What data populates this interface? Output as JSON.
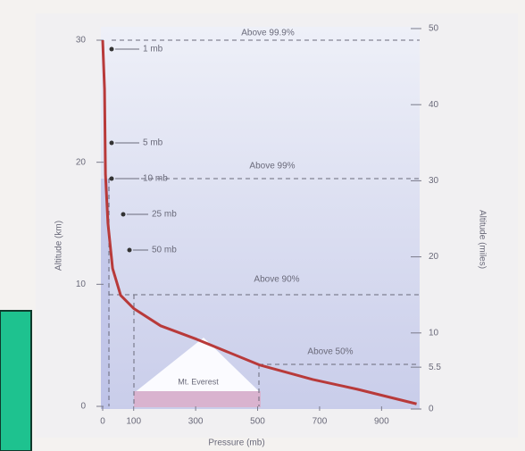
{
  "chart_data": {
    "type": "line",
    "x_label": "Pressure (mb)",
    "y_label": "Altitude (km)",
    "y2_label": "Altitude (miles)",
    "xlim": [
      0,
      1020
    ],
    "xticks": [
      0,
      100,
      300,
      500,
      700,
      900
    ],
    "ylim": [
      0,
      30
    ],
    "yticks": [
      0,
      10,
      20,
      30
    ],
    "y2lim": [
      0,
      50
    ],
    "y2ticks": [
      0,
      5.5,
      10,
      20,
      30,
      40,
      50
    ],
    "grid": false,
    "series": [
      {
        "color": "#b83a3a",
        "x": [
          0,
          6,
          9,
          17,
          32,
          58,
          101,
          187,
          303,
          505,
          678,
          822,
          1013
        ],
        "values": [
          30,
          26,
          19,
          15,
          11.3,
          9.1,
          8.0,
          6.6,
          5.5,
          3.4,
          2.2,
          1.4,
          0.2
        ]
      }
    ],
    "levels": [
      "Above 99.9%",
      "Above 99%",
      "Above 90%",
      "Above 50%"
    ],
    "pressure_labels": [
      "1 mb",
      "5 mb",
      "10 mb",
      "25 mb",
      "50 mb"
    ],
    "mountain_label": "Mt. Everest"
  }
}
